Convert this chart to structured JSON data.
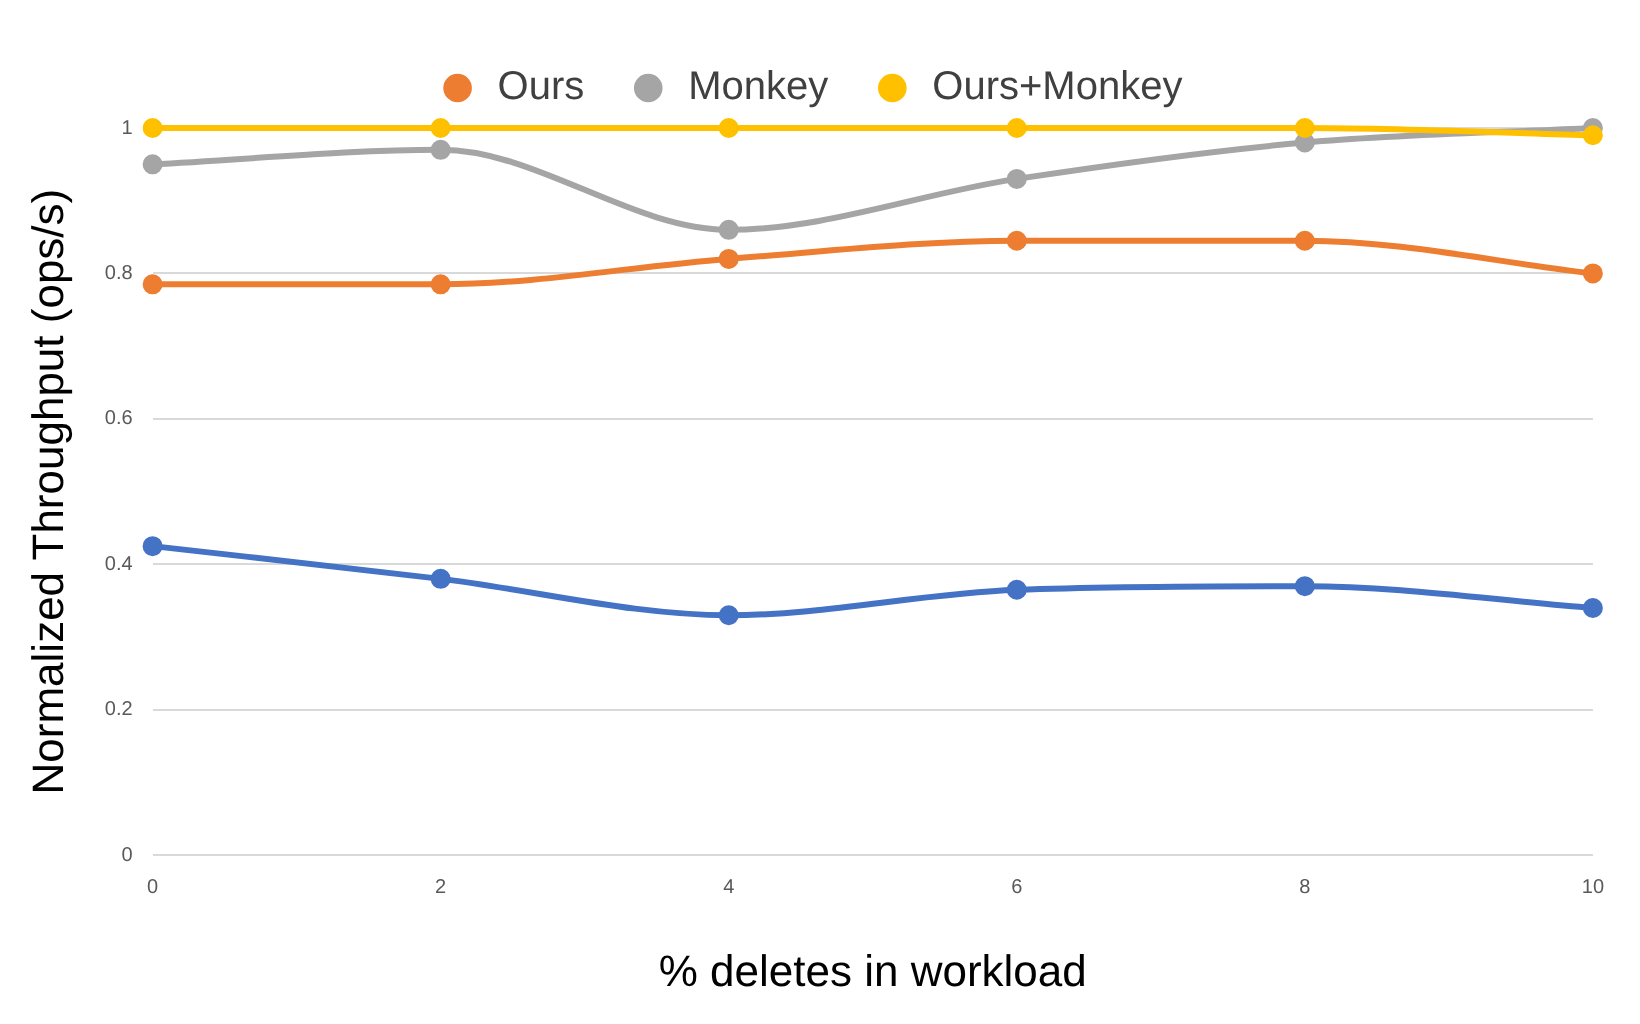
{
  "chart_data": {
    "type": "line",
    "xlabel": "% deletes in workload",
    "ylabel": "Normalized Throughput (ops/s)",
    "categories": [
      "0",
      "2",
      "4",
      "6",
      "8",
      "10"
    ],
    "series": [
      {
        "color": "#4472c4",
        "values": [
          0.425,
          0.38,
          0.33,
          0.365,
          0.37,
          0.34
        ]
      },
      {
        "name": "Ours",
        "color": "#ed7d31",
        "values": [
          0.785,
          0.785,
          0.82,
          0.845,
          0.845,
          0.8
        ]
      },
      {
        "name": "Monkey",
        "color": "#a5a5a5",
        "values": [
          0.95,
          0.97,
          0.86,
          0.93,
          0.98,
          1.0
        ]
      },
      {
        "name": "Ours+Monkey",
        "color": "#ffc000",
        "values": [
          1,
          1,
          1,
          1,
          1,
          0.99
        ]
      }
    ],
    "ylim": [
      0,
      1
    ],
    "yticks": [
      0,
      0.2,
      0.4,
      0.6,
      0.8,
      1
    ],
    "grid": "y",
    "legend": "top",
    "marker": "circle",
    "line_style": "solid"
  }
}
